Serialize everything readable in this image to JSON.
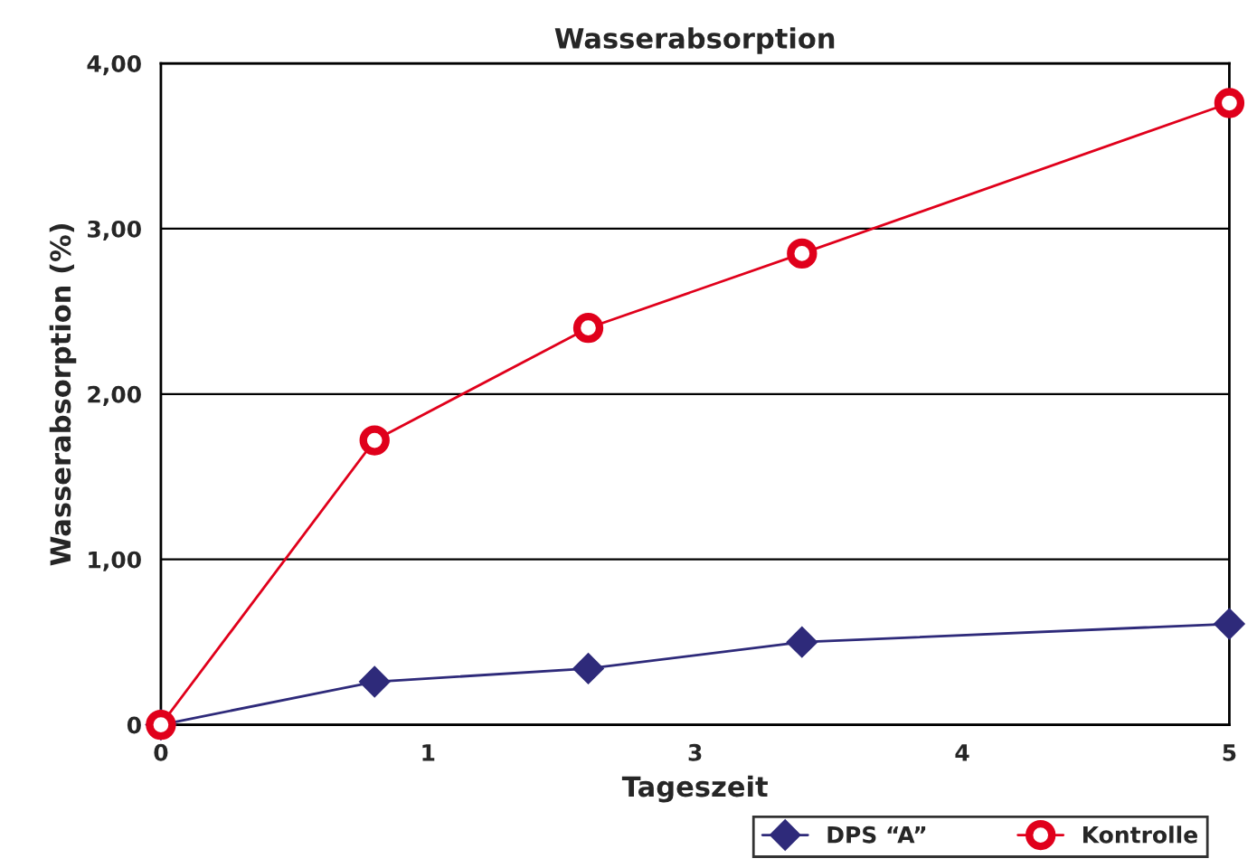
{
  "chart_data": {
    "type": "line",
    "title": "Wasserabsorption",
    "xlabel": "Tageszeit",
    "ylabel": "Wasserabsorption (%)",
    "x": [
      0,
      1,
      2,
      3,
      5
    ],
    "series": [
      {
        "name": "DPS “A”",
        "color": "#2e2a7a",
        "marker": "diamond",
        "values": [
          0,
          0.26,
          0.34,
          0.5,
          0.61
        ]
      },
      {
        "name": "Kontrolle",
        "color": "#e0001b",
        "marker": "circle",
        "values": [
          0,
          1.72,
          2.4,
          2.85,
          3.76
        ]
      }
    ],
    "xlim": [
      0,
      5
    ],
    "xticks": [
      {
        "value": 0,
        "label": "0"
      },
      {
        "value": 1.25,
        "label": "1"
      },
      {
        "value": 2.5,
        "label": "3"
      },
      {
        "value": 3.75,
        "label": "4"
      },
      {
        "value": 5,
        "label": "5"
      }
    ],
    "ylim": [
      0,
      4
    ],
    "yticks": [
      {
        "value": 0,
        "label": "0"
      },
      {
        "value": 1,
        "label": "1,00"
      },
      {
        "value": 2,
        "label": "2,00"
      },
      {
        "value": 3,
        "label": "3,00"
      },
      {
        "value": 4,
        "label": "4,00"
      }
    ],
    "grid": "y",
    "legend": "bottom",
    "line_style": "solid"
  }
}
